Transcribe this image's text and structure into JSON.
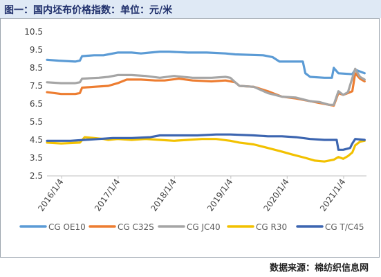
{
  "header": {
    "title": "图一：国内坯布价格指数：单位：元/米"
  },
  "footer": {
    "source": "数据来源：棉纺织信息网"
  },
  "chart_data": {
    "type": "line",
    "title": "图一：国内坯布价格指数：单位：元/米",
    "xlabel": "",
    "ylabel": "",
    "ylim": [
      2.5,
      10.5
    ],
    "yticks": [
      2.5,
      3.5,
      4.5,
      5.5,
      6.5,
      7.5,
      8.5,
      9.5,
      10.5
    ],
    "xlim": [
      "2015-10-01",
      "2021-06-01"
    ],
    "xticks": [
      "2016/1/4",
      "2017/1/4",
      "2018/1/4",
      "2019/1/4",
      "2020/1/4",
      "2021/1/4"
    ],
    "xtick_dates": [
      "2016-01-04",
      "2017-01-04",
      "2018-01-04",
      "2019-01-04",
      "2020-01-04",
      "2021-01-04"
    ],
    "grid": false,
    "legend_position": "bottom",
    "series": [
      {
        "name": "CG OE10",
        "color": "#5b9bd5",
        "points": [
          [
            "2015-10-01",
            8.95
          ],
          [
            "2015-12-15",
            8.9
          ],
          [
            "2016-04-01",
            8.85
          ],
          [
            "2016-05-01",
            8.9
          ],
          [
            "2016-05-15",
            9.15
          ],
          [
            "2016-08-01",
            9.2
          ],
          [
            "2016-10-01",
            9.2
          ],
          [
            "2016-11-01",
            9.25
          ],
          [
            "2017-01-01",
            9.35
          ],
          [
            "2017-04-01",
            9.35
          ],
          [
            "2017-06-01",
            9.3
          ],
          [
            "2017-08-01",
            9.35
          ],
          [
            "2017-10-01",
            9.4
          ],
          [
            "2017-12-01",
            9.4
          ],
          [
            "2018-04-01",
            9.35
          ],
          [
            "2018-08-01",
            9.35
          ],
          [
            "2018-12-01",
            9.3
          ],
          [
            "2019-02-01",
            9.25
          ],
          [
            "2019-08-01",
            9.2
          ],
          [
            "2019-10-01",
            9.1
          ],
          [
            "2019-11-15",
            8.85
          ],
          [
            "2020-04-15",
            8.85
          ],
          [
            "2020-05-01",
            8.2
          ],
          [
            "2020-06-01",
            8.0
          ],
          [
            "2020-09-01",
            7.95
          ],
          [
            "2020-10-20",
            7.95
          ],
          [
            "2020-11-01",
            8.5
          ],
          [
            "2020-12-01",
            8.2
          ],
          [
            "2021-03-01",
            8.15
          ],
          [
            "2021-03-20",
            8.4
          ],
          [
            "2021-04-20",
            8.3
          ],
          [
            "2021-05-20",
            8.2
          ]
        ]
      },
      {
        "name": "CG C32S",
        "color": "#ed7d31",
        "points": [
          [
            "2015-10-01",
            7.15
          ],
          [
            "2016-01-01",
            7.05
          ],
          [
            "2016-04-01",
            7.05
          ],
          [
            "2016-05-01",
            7.1
          ],
          [
            "2016-05-15",
            7.4
          ],
          [
            "2016-08-01",
            7.45
          ],
          [
            "2016-11-01",
            7.5
          ],
          [
            "2017-01-01",
            7.65
          ],
          [
            "2017-03-01",
            7.85
          ],
          [
            "2017-06-01",
            7.85
          ],
          [
            "2017-09-01",
            7.8
          ],
          [
            "2017-11-01",
            7.8
          ],
          [
            "2018-02-01",
            7.9
          ],
          [
            "2018-05-01",
            7.8
          ],
          [
            "2018-09-01",
            7.75
          ],
          [
            "2018-12-01",
            7.8
          ],
          [
            "2019-02-01",
            7.7
          ],
          [
            "2019-03-01",
            7.5
          ],
          [
            "2019-06-01",
            7.45
          ],
          [
            "2019-09-01",
            7.2
          ],
          [
            "2019-12-01",
            6.9
          ],
          [
            "2020-03-01",
            6.8
          ],
          [
            "2020-06-01",
            6.65
          ],
          [
            "2020-09-01",
            6.5
          ],
          [
            "2020-11-01",
            6.4
          ],
          [
            "2020-12-01",
            7.1
          ],
          [
            "2021-01-01",
            7.0
          ],
          [
            "2021-02-01",
            7.1
          ],
          [
            "2021-03-01",
            7.2
          ],
          [
            "2021-03-20",
            8.2
          ],
          [
            "2021-04-20",
            7.9
          ],
          [
            "2021-05-20",
            7.75
          ]
        ]
      },
      {
        "name": "CG JC40",
        "color": "#a5a5a5",
        "points": [
          [
            "2015-10-01",
            7.7
          ],
          [
            "2016-01-01",
            7.65
          ],
          [
            "2016-04-01",
            7.65
          ],
          [
            "2016-05-01",
            7.7
          ],
          [
            "2016-05-15",
            7.9
          ],
          [
            "2016-09-01",
            7.95
          ],
          [
            "2016-11-01",
            8.0
          ],
          [
            "2017-01-01",
            8.1
          ],
          [
            "2017-04-01",
            8.1
          ],
          [
            "2017-07-01",
            8.05
          ],
          [
            "2017-10-01",
            7.95
          ],
          [
            "2018-01-01",
            8.05
          ],
          [
            "2018-05-01",
            7.95
          ],
          [
            "2018-09-01",
            7.95
          ],
          [
            "2018-12-01",
            8.0
          ],
          [
            "2019-01-01",
            7.95
          ],
          [
            "2019-02-01",
            7.7
          ],
          [
            "2019-03-01",
            7.5
          ],
          [
            "2019-06-01",
            7.45
          ],
          [
            "2019-09-01",
            7.1
          ],
          [
            "2019-12-01",
            6.9
          ],
          [
            "2020-03-01",
            6.85
          ],
          [
            "2020-06-01",
            6.65
          ],
          [
            "2020-08-01",
            6.6
          ],
          [
            "2020-10-01",
            6.45
          ],
          [
            "2020-11-01",
            6.45
          ],
          [
            "2020-12-01",
            7.2
          ],
          [
            "2021-01-01",
            7.0
          ],
          [
            "2021-02-01",
            7.15
          ],
          [
            "2021-03-20",
            8.45
          ],
          [
            "2021-04-20",
            8.0
          ],
          [
            "2021-05-20",
            7.85
          ]
        ]
      },
      {
        "name": "CG R30",
        "color": "#f2c100",
        "points": [
          [
            "2015-10-01",
            4.35
          ],
          [
            "2016-01-01",
            4.3
          ],
          [
            "2016-05-01",
            4.35
          ],
          [
            "2016-06-01",
            4.65
          ],
          [
            "2016-08-01",
            4.6
          ],
          [
            "2016-10-01",
            4.55
          ],
          [
            "2016-11-01",
            4.5
          ],
          [
            "2017-01-01",
            4.55
          ],
          [
            "2017-04-01",
            4.5
          ],
          [
            "2017-07-01",
            4.55
          ],
          [
            "2017-10-01",
            4.5
          ],
          [
            "2018-01-01",
            4.45
          ],
          [
            "2018-04-01",
            4.5
          ],
          [
            "2018-07-01",
            4.55
          ],
          [
            "2018-10-01",
            4.55
          ],
          [
            "2019-01-01",
            4.45
          ],
          [
            "2019-03-01",
            4.35
          ],
          [
            "2019-06-01",
            4.25
          ],
          [
            "2019-09-01",
            4.05
          ],
          [
            "2019-12-01",
            3.85
          ],
          [
            "2020-02-01",
            3.7
          ],
          [
            "2020-05-01",
            3.5
          ],
          [
            "2020-07-01",
            3.35
          ],
          [
            "2020-09-01",
            3.3
          ],
          [
            "2020-11-01",
            3.4
          ],
          [
            "2020-12-01",
            3.55
          ],
          [
            "2021-01-01",
            3.45
          ],
          [
            "2021-02-01",
            3.6
          ],
          [
            "2021-03-01",
            3.8
          ],
          [
            "2021-03-20",
            4.2
          ],
          [
            "2021-04-20",
            4.4
          ],
          [
            "2021-05-20",
            4.45
          ]
        ]
      },
      {
        "name": "CG T/C45",
        "color": "#3c65b0",
        "points": [
          [
            "2015-10-01",
            4.45
          ],
          [
            "2016-03-01",
            4.45
          ],
          [
            "2016-06-01",
            4.5
          ],
          [
            "2016-09-01",
            4.55
          ],
          [
            "2016-12-01",
            4.6
          ],
          [
            "2017-04-01",
            4.6
          ],
          [
            "2017-08-01",
            4.65
          ],
          [
            "2017-10-01",
            4.75
          ],
          [
            "2018-01-01",
            4.75
          ],
          [
            "2018-06-01",
            4.75
          ],
          [
            "2018-10-01",
            4.8
          ],
          [
            "2019-01-01",
            4.8
          ],
          [
            "2019-06-01",
            4.75
          ],
          [
            "2019-09-01",
            4.7
          ],
          [
            "2019-12-01",
            4.7
          ],
          [
            "2020-03-01",
            4.65
          ],
          [
            "2020-06-01",
            4.55
          ],
          [
            "2020-09-01",
            4.5
          ],
          [
            "2020-11-20",
            4.5
          ],
          [
            "2020-12-01",
            3.95
          ],
          [
            "2021-01-01",
            3.95
          ],
          [
            "2021-02-15",
            4.05
          ],
          [
            "2021-03-01",
            4.3
          ],
          [
            "2021-03-20",
            4.55
          ],
          [
            "2021-05-20",
            4.5
          ]
        ]
      }
    ]
  }
}
